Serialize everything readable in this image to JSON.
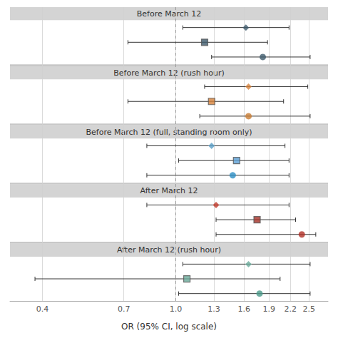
{
  "chart_data": {
    "type": "forest",
    "xlabel": "OR (95% CI, log scale)",
    "log": "x",
    "xlim": [
      0.32,
      2.85
    ],
    "xticks": [
      0.4,
      0.7,
      {
        "value": 1.0,
        "label": "1.0"
      },
      1.3,
      1.6,
      1.9,
      2.2,
      2.5
    ],
    "grid": true,
    "reference_line": 1.0,
    "sections": [
      {
        "title": "Before March 12",
        "rows": [
          {
            "value": 1.62,
            "ci_lo": 1.05,
            "ci_hi": 2.18,
            "marker": "diamond",
            "color": "#3d5a6c"
          },
          {
            "value": 1.22,
            "ci_lo": 0.72,
            "ci_hi": 1.88,
            "marker": "square",
            "color": "#3d5a6c"
          },
          {
            "value": 1.82,
            "ci_lo": 1.28,
            "ci_hi": 2.52,
            "marker": "circle",
            "color": "#3d5a6c"
          }
        ]
      },
      {
        "title": "Before March 12 (rush hour)",
        "rows": [
          {
            "value": 1.65,
            "ci_lo": 1.22,
            "ci_hi": 2.48,
            "marker": "diamond",
            "color": "#d4813a"
          },
          {
            "value": 1.28,
            "ci_lo": 0.72,
            "ci_hi": 2.1,
            "marker": "square",
            "color": "#d4813a"
          },
          {
            "value": 1.65,
            "ci_lo": 1.18,
            "ci_hi": 2.52,
            "marker": "circle",
            "color": "#c87d35"
          }
        ]
      },
      {
        "title": "Before March 12 (full, standing room only)",
        "rows": [
          {
            "value": 1.28,
            "ci_lo": 0.82,
            "ci_hi": 2.12,
            "marker": "diamond",
            "color": "#5a9fc7"
          },
          {
            "value": 1.52,
            "ci_lo": 1.02,
            "ci_hi": 2.18,
            "marker": "square",
            "color": "#5b9fd4"
          },
          {
            "value": 1.48,
            "ci_lo": 0.82,
            "ci_hi": 2.18,
            "marker": "circle",
            "color": "#2d8fc4"
          }
        ]
      },
      {
        "title": "After March 12",
        "rows": [
          {
            "value": 1.32,
            "ci_lo": 0.82,
            "ci_hi": 2.18,
            "marker": "diamond",
            "color": "#c0392b"
          },
          {
            "value": 1.75,
            "ci_lo": 1.32,
            "ci_hi": 2.28,
            "marker": "square",
            "color": "#a83228"
          },
          {
            "value": 2.38,
            "ci_lo": 1.32,
            "ci_hi": 2.62,
            "marker": "circle",
            "color": "#b03025"
          }
        ]
      },
      {
        "title": "After March 12 (rush hour)",
        "rows": [
          {
            "value": 1.65,
            "ci_lo": 1.05,
            "ci_hi": 2.52,
            "marker": "diamond",
            "color": "#6aaa9a"
          },
          {
            "value": 1.08,
            "ci_lo": 0.38,
            "ci_hi": 2.05,
            "marker": "square",
            "color": "#6aaa9a"
          },
          {
            "value": 1.78,
            "ci_lo": 1.02,
            "ci_hi": 2.52,
            "marker": "circle",
            "color": "#4a9a8a"
          }
        ]
      }
    ]
  }
}
